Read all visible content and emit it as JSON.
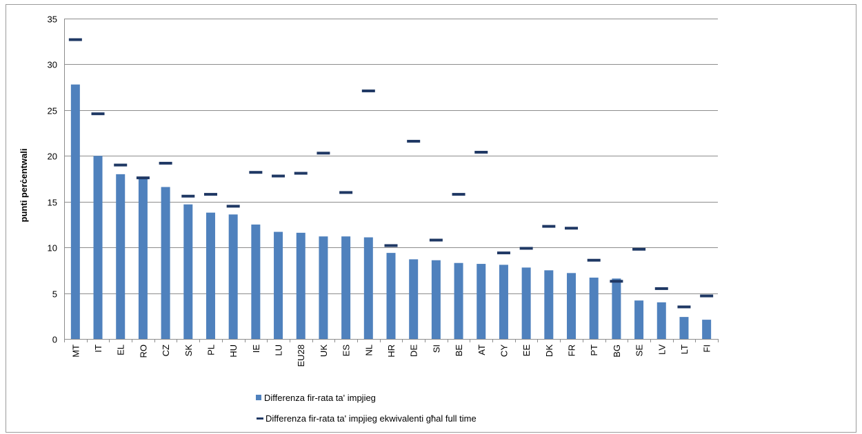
{
  "chart_data": {
    "type": "bar",
    "title": "",
    "xlabel": "",
    "ylabel": "punti perċentwali",
    "ylim": [
      0,
      35
    ],
    "yticks": [
      0,
      5,
      10,
      15,
      20,
      25,
      30,
      35
    ],
    "grid": true,
    "legend_position": "bottom",
    "categories": [
      "MT",
      "IT",
      "EL",
      "RO",
      "CZ",
      "SK",
      "PL",
      "HU",
      "IE",
      "LU",
      "EU28",
      "UK",
      "ES",
      "NL",
      "HR",
      "DE",
      "SI",
      "BE",
      "AT",
      "CY",
      "EE",
      "DK",
      "FR",
      "PT",
      "BG",
      "SE",
      "LV",
      "LT",
      "FI"
    ],
    "series": [
      {
        "name": "Differenza fir-rata ta' impjieg",
        "type": "bar",
        "color": "#4F81BD",
        "values": [
          27.8,
          20.0,
          18.0,
          17.6,
          16.6,
          14.7,
          13.8,
          13.6,
          12.5,
          11.7,
          11.6,
          11.2,
          11.2,
          11.1,
          9.4,
          8.7,
          8.6,
          8.3,
          8.2,
          8.1,
          7.8,
          7.5,
          7.2,
          6.7,
          6.6,
          4.2,
          4.0,
          2.4,
          2.1
        ]
      },
      {
        "name": "Differenza fir-rata ta' impjieg ekwivalenti għal full time",
        "type": "marker",
        "color": "#1F3864",
        "values": [
          32.7,
          24.6,
          19.0,
          17.6,
          19.2,
          15.6,
          15.8,
          14.5,
          18.2,
          17.8,
          18.1,
          20.3,
          16.0,
          27.1,
          10.2,
          21.6,
          10.8,
          15.8,
          20.4,
          9.4,
          9.9,
          12.3,
          12.1,
          8.6,
          6.3,
          9.8,
          5.5,
          3.5,
          4.7
        ]
      }
    ]
  }
}
